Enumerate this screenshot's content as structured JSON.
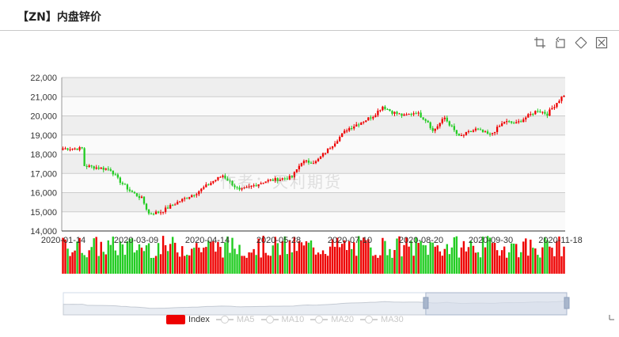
{
  "header": {
    "title": "【ZN】内盘锌价"
  },
  "toolbox": [
    {
      "name": "zoom-icon",
      "label": "zoom"
    },
    {
      "name": "zoom-reset-icon",
      "label": "zoom reset"
    },
    {
      "name": "restore-icon",
      "label": "restore"
    },
    {
      "name": "save-image-icon",
      "label": "save image"
    }
  ],
  "watermark": "作者：天利期货",
  "legend": [
    {
      "label": "Index",
      "active": true,
      "color": "#ee0000"
    },
    {
      "label": "MA5",
      "active": false
    },
    {
      "label": "MA10",
      "active": false
    },
    {
      "label": "MA20",
      "active": false
    },
    {
      "label": "MA30",
      "active": false
    }
  ],
  "colors": {
    "up": "#ee0000",
    "down": "#22cc22",
    "grid_band": "#eeeeee",
    "zoom_fill": "#d6dde9"
  },
  "chart_data": {
    "type": "candlestick",
    "y_ticks": [
      "22,000",
      "21,000",
      "20,000",
      "19,000",
      "18,000",
      "17,000",
      "16,000",
      "15,000",
      "14,000"
    ],
    "ylim": [
      14000,
      22000
    ],
    "x_ticks": [
      "2020-01-14",
      "2020-03-09",
      "2020-04-14",
      "2020-05-28",
      "2020-07-10",
      "2020-08-20",
      "2020-09-30",
      "2020-11-18"
    ],
    "trend_anchors": [
      [
        0,
        18300
      ],
      [
        8,
        18300
      ],
      [
        9,
        17400
      ],
      [
        20,
        17200
      ],
      [
        23,
        16700
      ],
      [
        28,
        16100
      ],
      [
        33,
        15700
      ],
      [
        36,
        14900
      ],
      [
        41,
        15000
      ],
      [
        48,
        15500
      ],
      [
        56,
        16000
      ],
      [
        63,
        16600
      ],
      [
        67,
        16900
      ],
      [
        74,
        16100
      ],
      [
        85,
        16600
      ],
      [
        96,
        16800
      ],
      [
        100,
        17600
      ],
      [
        106,
        17600
      ],
      [
        113,
        18500
      ],
      [
        119,
        19300
      ],
      [
        127,
        19800
      ],
      [
        130,
        20000
      ],
      [
        134,
        20500
      ],
      [
        138,
        20200
      ],
      [
        143,
        20000
      ],
      [
        148,
        20200
      ],
      [
        153,
        19700
      ],
      [
        155,
        19200
      ],
      [
        160,
        19900
      ],
      [
        166,
        18900
      ],
      [
        173,
        19300
      ],
      [
        179,
        19000
      ],
      [
        185,
        19700
      ],
      [
        190,
        19600
      ],
      [
        195,
        20000
      ],
      [
        199,
        20300
      ],
      [
        203,
        20100
      ],
      [
        207,
        20700
      ],
      [
        210,
        21100
      ]
    ],
    "candles": 211,
    "volume_range": [
      0,
      100
    ],
    "zoom_window": {
      "start_pct": 72,
      "end_pct": 100
    }
  }
}
